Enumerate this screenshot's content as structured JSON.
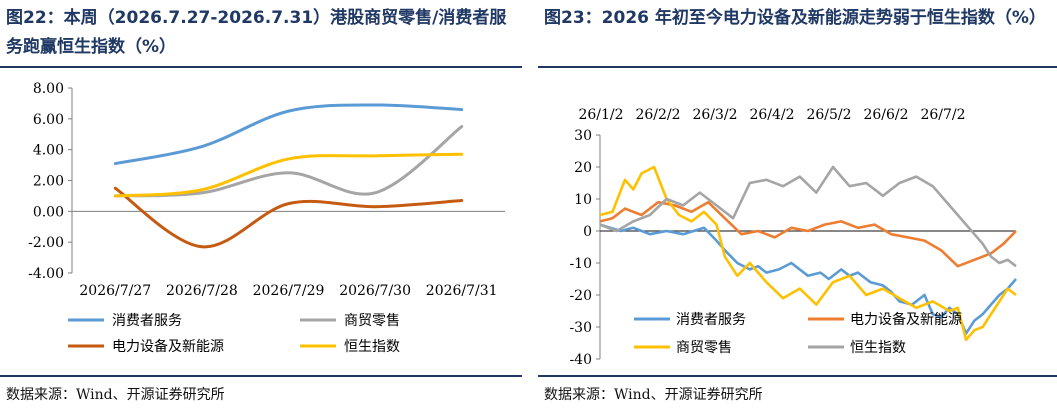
{
  "colors": {
    "title": "#1f3864",
    "consumer": "#5b9bd5",
    "retail": "#a5a5a5",
    "power": "#c55a11",
    "hsi": "#ffc000",
    "power_right": "#ed7d31"
  },
  "left": {
    "title": "图22：本周（2026.7.27-2026.7.31）港股商贸零售/消费者服务跑赢恒生指数（%）",
    "source": "数据来源：Wind、开源证券研究所"
  },
  "right": {
    "title": "图23：2026 年初至今电力设备及新能源走势弱于恒生指数（%）",
    "source": "数据来源：Wind、开源证券研究所"
  },
  "chart_data": [
    {
      "type": "line",
      "categories": [
        "2026/7/27",
        "2026/7/28",
        "2026/7/29",
        "2026/7/30",
        "2026/7/31"
      ],
      "series": [
        {
          "name": "消费者服务",
          "key": "consumer",
          "values": [
            3.1,
            4.2,
            6.5,
            6.9,
            6.6
          ]
        },
        {
          "name": "商贸零售",
          "key": "retail",
          "values": [
            1.0,
            1.2,
            2.5,
            1.2,
            5.5
          ]
        },
        {
          "name": "电力设备及新能源",
          "key": "power",
          "values": [
            1.5,
            -2.3,
            0.5,
            0.3,
            0.7
          ]
        },
        {
          "name": "恒生指数",
          "key": "hsi",
          "values": [
            1.0,
            1.4,
            3.4,
            3.6,
            3.7
          ]
        }
      ],
      "yticks": [
        "8.00",
        "6.00",
        "4.00",
        "2.00",
        "0.00",
        "-2.00",
        "-4.00"
      ],
      "ylim": [
        -4,
        8
      ],
      "grid": false,
      "legend": "bottom"
    },
    {
      "type": "line",
      "x_ticks": [
        "26/1/2",
        "26/2/2",
        "26/3/2",
        "26/4/2",
        "26/5/2",
        "26/6/2",
        "26/7/2"
      ],
      "x_range": [
        0,
        1
      ],
      "series": [
        {
          "name": "消费者服务",
          "key": "consumer",
          "x": [
            0,
            0.05,
            0.08,
            0.12,
            0.16,
            0.2,
            0.25,
            0.28,
            0.3,
            0.33,
            0.36,
            0.38,
            0.4,
            0.43,
            0.46,
            0.5,
            0.53,
            0.55,
            0.58,
            0.6,
            0.62,
            0.65,
            0.68,
            0.7,
            0.72,
            0.75,
            0.78,
            0.8,
            0.82,
            0.84,
            0.86,
            0.88,
            0.9,
            0.92,
            0.94,
            0.96,
            0.98,
            1.0
          ],
          "values": [
            2,
            0,
            1,
            -1,
            0,
            -1,
            1,
            -3,
            -6,
            -10,
            -12,
            -11,
            -13,
            -12,
            -10,
            -14,
            -13,
            -15,
            -12,
            -14,
            -13,
            -16,
            -17,
            -19,
            -22,
            -23,
            -20,
            -26,
            -27,
            -24,
            -26,
            -32,
            -28,
            -26,
            -23,
            -20,
            -18,
            -15
          ]
        },
        {
          "name": "电力设备及新能源",
          "key": "power_right",
          "x": [
            0,
            0.03,
            0.06,
            0.1,
            0.14,
            0.18,
            0.22,
            0.26,
            0.3,
            0.34,
            0.38,
            0.42,
            0.46,
            0.5,
            0.54,
            0.58,
            0.62,
            0.66,
            0.7,
            0.74,
            0.78,
            0.82,
            0.86,
            0.9,
            0.94,
            0.97,
            1.0
          ],
          "values": [
            3,
            4,
            7,
            5,
            9,
            8,
            6,
            9,
            4,
            -1,
            0,
            -2,
            1,
            0,
            2,
            3,
            1,
            2,
            -1,
            -2,
            -3,
            -6,
            -11,
            -9,
            -7,
            -4,
            0
          ]
        },
        {
          "name": "商贸零售",
          "key": "hsi",
          "x": [
            0,
            0.03,
            0.06,
            0.08,
            0.1,
            0.13,
            0.16,
            0.19,
            0.22,
            0.25,
            0.28,
            0.3,
            0.33,
            0.36,
            0.4,
            0.44,
            0.48,
            0.52,
            0.56,
            0.6,
            0.64,
            0.68,
            0.72,
            0.76,
            0.8,
            0.84,
            0.86,
            0.88,
            0.9,
            0.92,
            0.94,
            0.96,
            0.98,
            1.0
          ],
          "values": [
            5,
            6,
            16,
            13,
            18,
            20,
            10,
            5,
            3,
            6,
            2,
            -8,
            -14,
            -10,
            -16,
            -21,
            -18,
            -23,
            -16,
            -14,
            -20,
            -18,
            -21,
            -24,
            -22,
            -25,
            -24,
            -34,
            -31,
            -30,
            -26,
            -22,
            -18,
            -20
          ]
        },
        {
          "name": "恒生指数",
          "key": "retail",
          "x": [
            0,
            0.04,
            0.08,
            0.12,
            0.16,
            0.2,
            0.24,
            0.28,
            0.32,
            0.36,
            0.4,
            0.44,
            0.48,
            0.52,
            0.56,
            0.6,
            0.64,
            0.68,
            0.72,
            0.76,
            0.8,
            0.84,
            0.88,
            0.9,
            0.92,
            0.94,
            0.96,
            0.98,
            1.0
          ],
          "values": [
            2,
            0,
            3,
            5,
            10,
            8,
            12,
            8,
            4,
            15,
            16,
            14,
            17,
            12,
            20,
            14,
            15,
            11,
            15,
            17,
            14,
            8,
            2,
            -1,
            -4,
            -8,
            -10,
            -9,
            -11
          ]
        }
      ],
      "yticks": [
        "30",
        "20",
        "10",
        "0",
        "-10",
        "-20",
        "-30",
        "-40"
      ],
      "ylim": [
        -40,
        30
      ],
      "zero_line": true,
      "legend": "bottom",
      "legend_entries": [
        "消费者服务",
        "电力设备及新能源",
        "商贸零售",
        "恒生指数"
      ]
    }
  ]
}
